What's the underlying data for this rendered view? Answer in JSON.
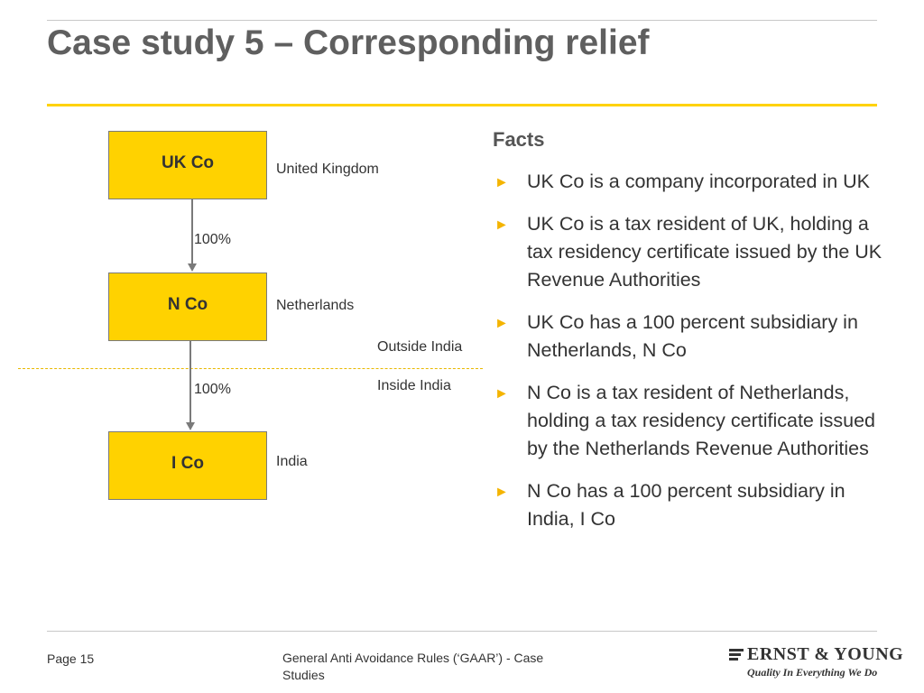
{
  "header": {
    "title": "Case study 5 – Corresponding relief"
  },
  "diagram": {
    "entities": [
      {
        "name": "UK Co",
        "country": "United Kingdom"
      },
      {
        "name": "N Co",
        "country": "Netherlands"
      },
      {
        "name": "I Co",
        "country": "India"
      }
    ],
    "links": [
      {
        "from": "UK Co",
        "to": "N Co",
        "label": "100%"
      },
      {
        "from": "N Co",
        "to": "I Co",
        "label": "100%"
      }
    ],
    "boundary": {
      "above_label": "Outside India",
      "below_label": "Inside India"
    }
  },
  "facts": {
    "heading": "Facts",
    "bullet_icon": "triangle-right-icon",
    "items": [
      "UK Co is a company incorporated in UK",
      "UK Co is a tax resident of UK, holding a tax residency certificate issued by the UK Revenue Authorities",
      "UK Co has a 100 percent subsidiary in Netherlands, N Co",
      "N Co is a tax resident of Netherlands, holding a tax residency certificate issued by the Netherlands Revenue Authorities",
      "N Co has a 100 percent subsidiary in India, I Co"
    ]
  },
  "footer": {
    "page": "Page 15",
    "document": "General Anti Avoidance Rules (‘GAAR’)  - Case Studies"
  },
  "logo": {
    "name": "Ernst & Young",
    "wordmark": "ERNST & YOUNG",
    "tagline": "Quality In Everything We Do"
  },
  "colors": {
    "accent": "#ffd200",
    "bullet": "#f4b400",
    "title": "#5f5f5f",
    "connector": "#7a7a7a"
  }
}
